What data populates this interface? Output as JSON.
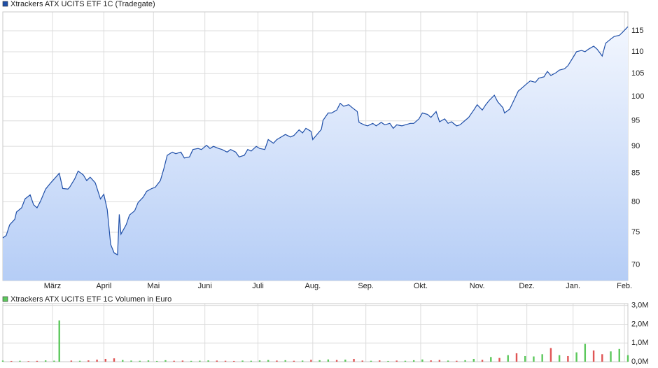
{
  "chart_data": [
    {
      "type": "line",
      "series": [
        {
          "name": "Xtrackers ATX UCITS ETF 1C (Tradegate)",
          "color": "#1f4fa8",
          "values": [
            74.1,
            74.5,
            76.2,
            77.1,
            78.3,
            79.0,
            80.5,
            81.2,
            79.5,
            79.0,
            80.1,
            82.2,
            83.3,
            85.0,
            82.3,
            82.2,
            82.5,
            84.0,
            85.4,
            84.7,
            83.7,
            84.3,
            83.3,
            80.5,
            81.3,
            78.7,
            73.1,
            71.8,
            71.5,
            77.9,
            74.7,
            76.2,
            77.8,
            78.5,
            79.9,
            80.8,
            81.8,
            82.3,
            82.5,
            83.7,
            85.8,
            88.3,
            88.9,
            88.6,
            88.9,
            87.8,
            88.0,
            89.4,
            89.6,
            89.4,
            90.2,
            89.6,
            90.0,
            89.6,
            89.4,
            88.9,
            89.4,
            88.9,
            88.0,
            88.3,
            89.4,
            89.1,
            90.0,
            89.6,
            89.4,
            91.3,
            90.6,
            91.3,
            91.9,
            92.3,
            91.8,
            92.1,
            93.2,
            92.6,
            93.5,
            92.9,
            91.3,
            92.1,
            93.3,
            95.1,
            96.6,
            96.6,
            97.2,
            98.6,
            98.0,
            98.3,
            97.7,
            96.9,
            94.7,
            94.2,
            94.0,
            94.5,
            94.0,
            94.7,
            94.2,
            94.5,
            93.5,
            94.2,
            94.0,
            94.2,
            94.5,
            94.5,
            95.4,
            96.6,
            96.3,
            95.7,
            96.9,
            94.8,
            95.4,
            94.5,
            94.8,
            94.0,
            94.2,
            95.1,
            95.7,
            97.2,
            98.3,
            97.2,
            98.3,
            99.2,
            100.3,
            98.9,
            97.7,
            96.6,
            97.4,
            98.9,
            101.2,
            101.8,
            102.8,
            103.4,
            103.1,
            104.0,
            104.3,
            105.5,
            104.6,
            105.2,
            105.8,
            106.1,
            106.8,
            108.7,
            110.0,
            110.3,
            110.0,
            110.6,
            111.3,
            110.6,
            109.0,
            112.0,
            113.0,
            113.6,
            113.9,
            114.7,
            116.0
          ]
        }
      ],
      "x": [
        0,
        2,
        4,
        7,
        8,
        11,
        13,
        16,
        18,
        20,
        22,
        25,
        28,
        33,
        35,
        38,
        39,
        42,
        44,
        47,
        49,
        51,
        54,
        57,
        59,
        61,
        63,
        65,
        67,
        68,
        69,
        72,
        74,
        77,
        79,
        82,
        84,
        87,
        89,
        92,
        94,
        96,
        99,
        101,
        104,
        106,
        109,
        111,
        114,
        116,
        119,
        121,
        123,
        126,
        128,
        131,
        133,
        136,
        138,
        141,
        143,
        145,
        148,
        150,
        153,
        155,
        158,
        160,
        163,
        165,
        168,
        170,
        173,
        175,
        177,
        180,
        181,
        183,
        186,
        187,
        190,
        192,
        195,
        197,
        199,
        202,
        204,
        207,
        208,
        211,
        213,
        216,
        218,
        221,
        223,
        226,
        228,
        230,
        233,
        235,
        238,
        240,
        243,
        245,
        248,
        250,
        253,
        255,
        258,
        260,
        262,
        265,
        267,
        270,
        272,
        275,
        277,
        280,
        282,
        284,
        287,
        289,
        292,
        293,
        296,
        298,
        301,
        303,
        306,
        308,
        311,
        313,
        316,
        318,
        320,
        323,
        325,
        328,
        330,
        333,
        335,
        338,
        340,
        342,
        345,
        347,
        350,
        352,
        355,
        357,
        360,
        362,
        365
      ],
      "xlim": [
        0,
        365
      ],
      "xticks": [
        {
          "value": 29,
          "label": "März"
        },
        {
          "value": 59,
          "label": "April"
        },
        {
          "value": 88,
          "label": "Mai"
        },
        {
          "value": 118,
          "label": "Juni"
        },
        {
          "value": 149,
          "label": "Juli"
        },
        {
          "value": 181,
          "label": "Aug."
        },
        {
          "value": 212,
          "label": "Sep."
        },
        {
          "value": 244,
          "label": "Okt."
        },
        {
          "value": 277,
          "label": "Nov."
        },
        {
          "value": 306,
          "label": "Dez."
        },
        {
          "value": 333,
          "label": "Jan."
        },
        {
          "value": 363,
          "label": "Feb."
        }
      ],
      "ylim": [
        67.7,
        119.7
      ],
      "yticks": [
        70,
        75,
        80,
        85,
        90,
        95,
        100,
        105,
        110,
        115
      ],
      "log_scale": true,
      "grid": true
    },
    {
      "type": "bar",
      "series": [
        {
          "name": "Xtrackers ATX UCITS ETF 1C Volumen in Euro",
          "color": "#5cc85c",
          "values": [
            60000,
            40000,
            50000,
            30000,
            45000,
            70000,
            55000,
            2200000,
            60000,
            50000,
            70000,
            110000,
            150000,
            180000,
            90000,
            60000,
            50000,
            70000,
            40000,
            80000,
            50000,
            60000,
            45000,
            55000,
            70000,
            60000,
            50000,
            40000,
            60000,
            50000,
            70000,
            90000,
            60000,
            80000,
            50000,
            60000,
            100000,
            80000,
            120000,
            90000,
            110000,
            150000,
            60000,
            50000,
            70000,
            40000,
            60000,
            50000,
            80000,
            120000,
            70000,
            90000,
            60000,
            50000,
            80000,
            150000,
            100000,
            250000,
            200000,
            350000,
            450000,
            300000,
            280000,
            400000,
            730000,
            350000,
            300000,
            500000,
            950000,
            600000,
            400000,
            550000,
            680000,
            350000
          ],
          "colors": [
            "#5cc85c",
            "#e05555",
            "#5cc85c",
            "#e05555",
            "#e05555",
            "#5cc85c",
            "#5cc85c",
            "#5cc85c",
            "#e05555",
            "#5cc85c",
            "#e05555",
            "#e05555",
            "#e05555",
            "#e05555",
            "#5cc85c",
            "#5cc85c",
            "#5cc85c",
            "#5cc85c",
            "#5cc85c",
            "#5cc85c",
            "#e05555",
            "#e05555",
            "#5cc85c",
            "#5cc85c",
            "#5cc85c",
            "#e05555",
            "#e05555",
            "#e05555",
            "#5cc85c",
            "#5cc85c",
            "#5cc85c",
            "#5cc85c",
            "#e05555",
            "#5cc85c",
            "#e05555",
            "#5cc85c",
            "#e05555",
            "#5cc85c",
            "#5cc85c",
            "#e05555",
            "#5cc85c",
            "#e05555",
            "#e05555",
            "#5cc85c",
            "#e05555",
            "#5cc85c",
            "#e05555",
            "#5cc85c",
            "#5cc85c",
            "#5cc85c",
            "#e05555",
            "#e05555",
            "#5cc85c",
            "#e05555",
            "#5cc85c",
            "#5cc85c",
            "#e05555",
            "#5cc85c",
            "#e05555",
            "#5cc85c",
            "#e05555",
            "#5cc85c",
            "#5cc85c",
            "#5cc85c",
            "#e05555",
            "#5cc85c",
            "#e05555",
            "#5cc85c",
            "#5cc85c",
            "#e05555",
            "#e05555",
            "#5cc85c",
            "#5cc85c",
            "#5cc85c"
          ]
        }
      ],
      "x": [
        0,
        5,
        10,
        15,
        20,
        25,
        30,
        33,
        40,
        45,
        50,
        55,
        60,
        65,
        70,
        75,
        80,
        85,
        90,
        95,
        100,
        105,
        110,
        115,
        120,
        125,
        130,
        135,
        140,
        145,
        150,
        155,
        160,
        165,
        170,
        175,
        180,
        185,
        190,
        195,
        200,
        205,
        210,
        215,
        220,
        225,
        230,
        235,
        240,
        245,
        250,
        255,
        260,
        265,
        270,
        275,
        280,
        285,
        290,
        295,
        300,
        305,
        310,
        315,
        320,
        325,
        330,
        335,
        340,
        345,
        350,
        355,
        360,
        365
      ],
      "xlim": [
        0,
        365
      ],
      "xticks": [
        29,
        59,
        88,
        118,
        149,
        181,
        212,
        244,
        277,
        306,
        333,
        363
      ],
      "ylim": [
        0,
        3100000
      ],
      "yticks": [
        {
          "value": 0,
          "label": "0,0M"
        },
        {
          "value": 1000000,
          "label": "1,0M"
        },
        {
          "value": 2000000,
          "label": "2,0M"
        },
        {
          "value": 3000000,
          "label": "3,0M"
        }
      ],
      "grid": true
    }
  ]
}
